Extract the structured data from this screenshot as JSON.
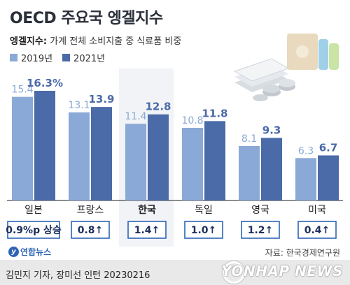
{
  "header": {
    "title": "OECD 주요국 엥겔지수",
    "subtitle_lead": "엥겔지수:",
    "subtitle_text": " 가계 전체 소비지출 중 식료품 비중"
  },
  "colors": {
    "series_2019": "#8aa9d6",
    "series_2021": "#4b6aa8",
    "value_2019": "#ffffff",
    "value_2021": "#1c2f5e",
    "change_box": "#2d64b5"
  },
  "chart_data": {
    "type": "bar",
    "categories": [
      "일본",
      "프랑스",
      "한국",
      "독일",
      "영국",
      "미국"
    ],
    "highlight_category": "한국",
    "series": [
      {
        "name": "2019년",
        "values": [
          15.4,
          13.1,
          11.4,
          10.8,
          8.1,
          6.3
        ],
        "labels": [
          "15.4",
          "13.1",
          "11.4",
          "10.8",
          "8.1",
          "6.3"
        ]
      },
      {
        "name": "2021년",
        "values": [
          16.3,
          13.9,
          12.8,
          11.8,
          9.3,
          6.7
        ],
        "labels": [
          "16.3%",
          "13.9",
          "12.8",
          "11.8",
          "9.3",
          "6.7"
        ]
      }
    ],
    "changes": [
      "0.9%p 상승",
      "0.8↑",
      "1.4↑",
      "1.0↑",
      "1.2↑",
      "0.4↑"
    ],
    "ylim": [
      0,
      18
    ],
    "title": "OECD 주요국 엥겔지수",
    "xlabel": "",
    "ylabel": "",
    "grid": false,
    "legend": "top-left"
  },
  "footer": {
    "logo_text": "연합뉴스",
    "source": "자료: 한국경제연구원",
    "credit": "김민지 기자, 장미선 인턴  20230216",
    "watermark": "YONHAP NEWS"
  }
}
